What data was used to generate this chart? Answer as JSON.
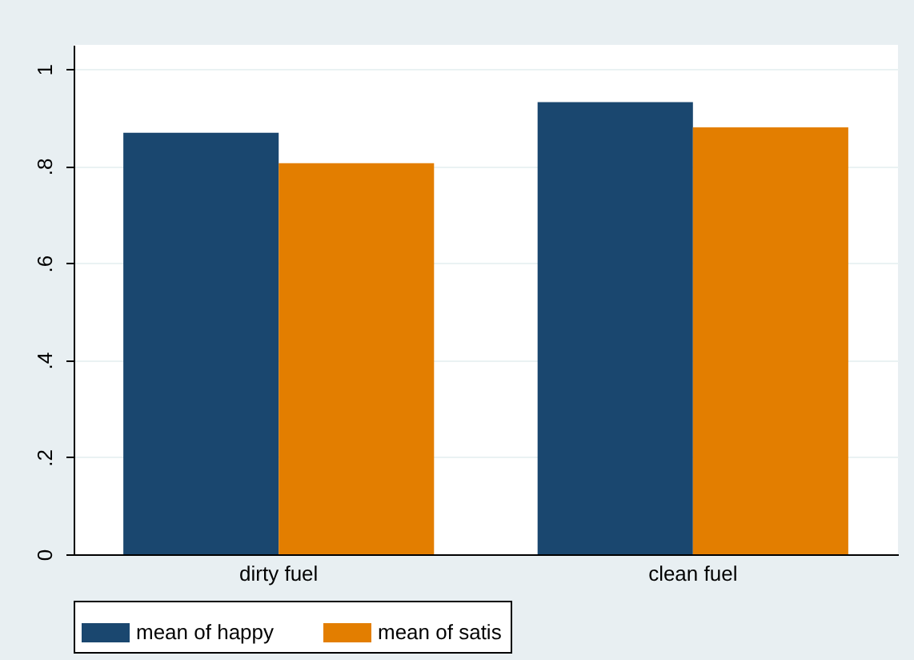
{
  "chart_data": {
    "type": "bar",
    "categories": [
      "dirty fuel",
      "clean fuel"
    ],
    "series": [
      {
        "name": "mean of happy",
        "color": "#1a476f",
        "values": [
          0.869,
          0.932
        ]
      },
      {
        "name": "mean of satis",
        "color": "#e37e00",
        "values": [
          0.806,
          0.88
        ]
      }
    ],
    "ylim": [
      0,
      1.05
    ],
    "yticks": [
      {
        "value": 0,
        "label": "0"
      },
      {
        "value": 0.2,
        "label": ".2"
      },
      {
        "value": 0.4,
        "label": ".4"
      },
      {
        "value": 0.6,
        "label": ".6"
      },
      {
        "value": 0.8,
        "label": ".8"
      },
      {
        "value": 1,
        "label": "1"
      }
    ],
    "grid": "y",
    "legend": "bottom"
  }
}
